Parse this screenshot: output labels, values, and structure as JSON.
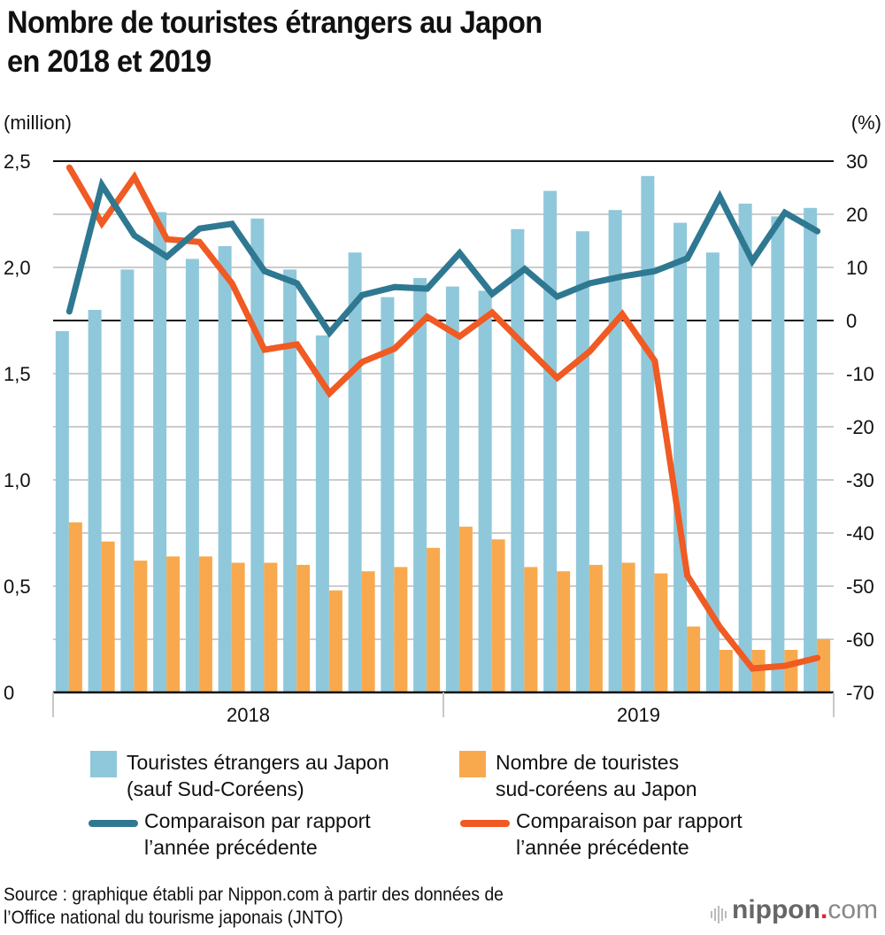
{
  "title_line1": "Nombre de touristes étrangers au Japon",
  "title_line2": "en 2018 et 2019",
  "left_unit": "(million)",
  "right_unit": "(%)",
  "legend": {
    "bar_blue": [
      "Touristes étrangers au Japon",
      "(sauf Sud-Coréens)"
    ],
    "bar_orange": [
      "Nombre de touristes",
      "sud-coréens au Japon"
    ],
    "line_blue": [
      "Comparaison par rapport",
      "l’année précédente"
    ],
    "line_orange": [
      "Comparaison par rapport",
      "l’année précédente"
    ]
  },
  "source_line1": "Source : graphique établi par Nippon.com à partir des données de",
  "source_line2": "l’Office national du tourisme japonais (JNTO)",
  "logo": {
    "brand": "nippon",
    "dot": ".",
    "tld": "com"
  },
  "colors": {
    "blue_bar": "#8fc8da",
    "orange_bar": "#f8a94d",
    "blue_line": "#2f7891",
    "orange_line": "#f05a23",
    "grid": "#cccccc",
    "axis": "#111111"
  },
  "chart_data": {
    "type": "bar",
    "title": "Nombre de touristes étrangers au Japon en 2018 et 2019",
    "xlabel": "",
    "ylabel": "(million)",
    "y2label": "(%)",
    "x_groups": [
      "2018",
      "2019"
    ],
    "categories": [
      "2018-01",
      "2018-02",
      "2018-03",
      "2018-04",
      "2018-05",
      "2018-06",
      "2018-07",
      "2018-08",
      "2018-09",
      "2018-10",
      "2018-11",
      "2018-12",
      "2019-01",
      "2019-02",
      "2019-03",
      "2019-04",
      "2019-05",
      "2019-06",
      "2019-07",
      "2019-08",
      "2019-09",
      "2019-10",
      "2019-11",
      "2019-12"
    ],
    "ylim": [
      0,
      2.5
    ],
    "y_ticks": [
      0,
      0.5,
      1.0,
      1.5,
      2.0,
      2.5
    ],
    "y_tick_labels": [
      "0",
      "0,5",
      "1,0",
      "1,5",
      "2,0",
      "2,5"
    ],
    "y2lim": [
      -70,
      30
    ],
    "y2_ticks": [
      30,
      20,
      10,
      0,
      -10,
      -20,
      -30,
      -40,
      -50,
      -60,
      -70
    ],
    "y2_tick_labels": [
      "30",
      "20",
      "10",
      "0",
      "-10",
      "-20",
      "-30",
      "-40",
      "-50",
      "-60",
      "-70"
    ],
    "grid": true,
    "legend_position": "bottom",
    "series": [
      {
        "name": "Touristes étrangers au Japon (sauf Sud-Coréens)",
        "type": "bar",
        "axis": "left",
        "values": [
          1.7,
          1.8,
          1.99,
          2.26,
          2.04,
          2.1,
          2.23,
          1.99,
          1.68,
          2.07,
          1.86,
          1.95,
          1.91,
          1.89,
          2.18,
          2.36,
          2.17,
          2.27,
          2.43,
          2.21,
          2.07,
          2.3,
          2.24,
          2.28
        ]
      },
      {
        "name": "Nombre de touristes sud-coréens au Japon",
        "type": "bar",
        "axis": "left",
        "values": [
          0.8,
          0.71,
          0.62,
          0.64,
          0.64,
          0.61,
          0.61,
          0.6,
          0.48,
          0.57,
          0.59,
          0.68,
          0.78,
          0.72,
          0.59,
          0.57,
          0.6,
          0.61,
          0.56,
          0.31,
          0.2,
          0.2,
          0.2,
          0.25
        ]
      },
      {
        "name": "Comparaison par rapport l’année précédente (hors Sud-Coréens)",
        "type": "line",
        "axis": "right",
        "values": [
          1.7,
          25.5,
          16.0,
          12.0,
          17.3,
          18.2,
          9.3,
          7.0,
          -2.3,
          4.8,
          6.3,
          6.0,
          12.7,
          5.0,
          9.7,
          4.5,
          7.0,
          8.3,
          9.3,
          11.7,
          23.3,
          11.2,
          20.3,
          16.8
        ]
      },
      {
        "name": "Comparaison par rapport l’année précédente (Sud-Coréens)",
        "type": "line",
        "axis": "right",
        "values": [
          28.8,
          18.3,
          27.0,
          15.3,
          14.8,
          7.0,
          -5.5,
          -4.5,
          -13.7,
          -7.8,
          -5.3,
          0.7,
          -3.0,
          1.5,
          -4.7,
          -10.8,
          -5.8,
          1.2,
          -7.6,
          -48.0,
          -57.7,
          -65.5,
          -65.0,
          -63.5
        ]
      }
    ]
  }
}
